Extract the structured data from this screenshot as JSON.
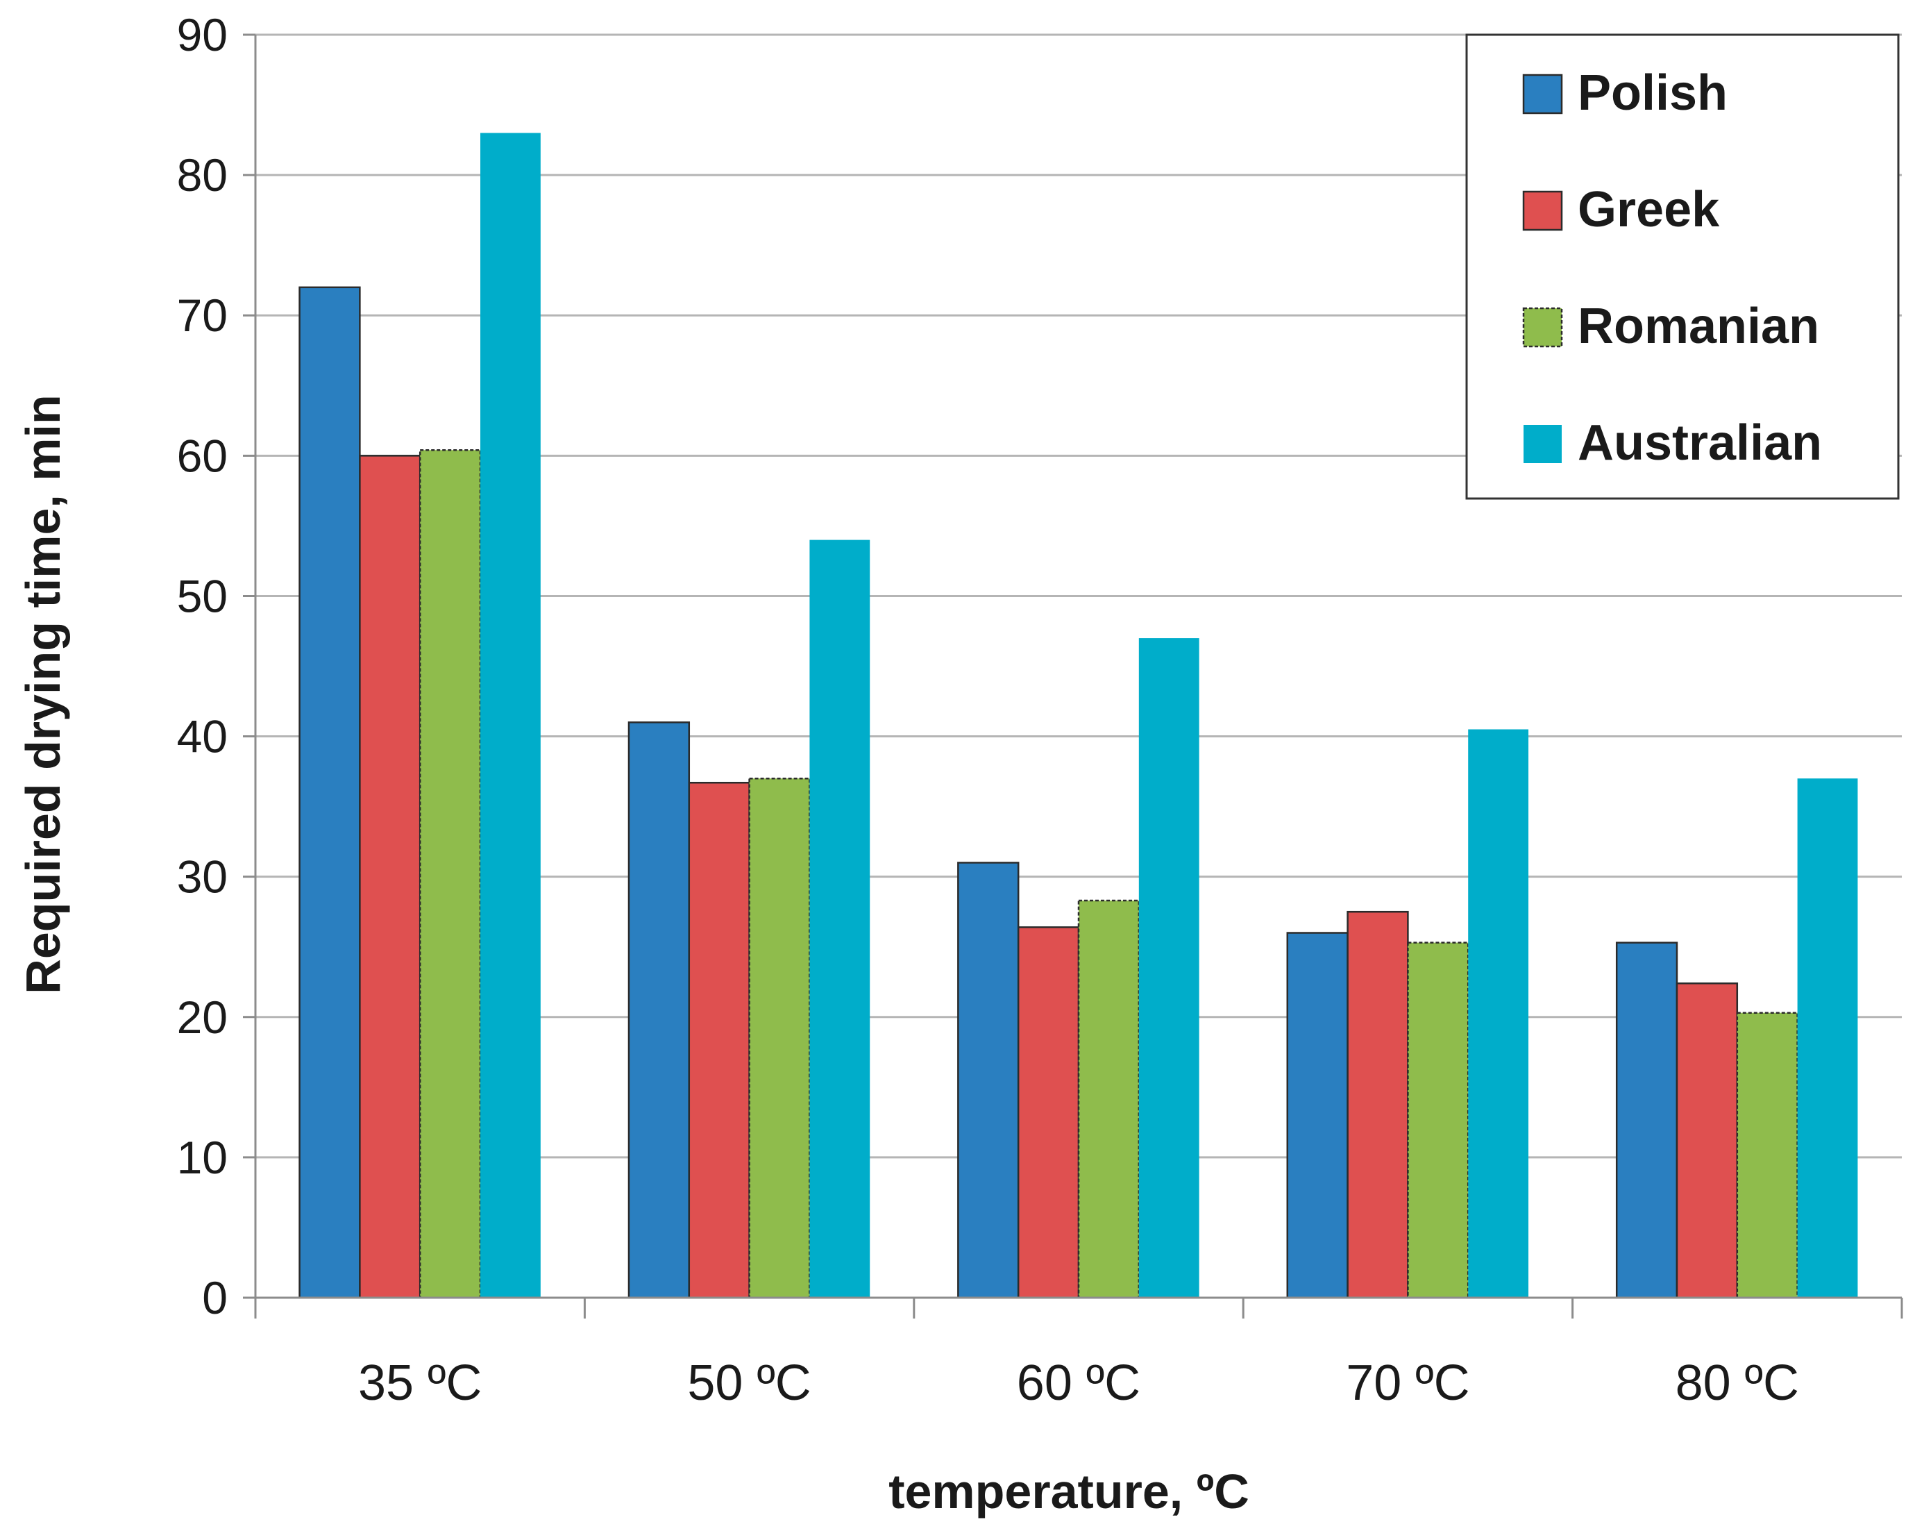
{
  "chart_data": {
    "type": "bar",
    "title": "",
    "xlabel": "temperature, ºC",
    "ylabel": "Required drying time, min",
    "ylim": [
      0,
      90
    ],
    "yticks": [
      0,
      10,
      20,
      30,
      40,
      50,
      60,
      70,
      80,
      90
    ],
    "grid": true,
    "legend_position": "top-right",
    "categories": [
      "35  ºC",
      "50  ºC",
      "60  ºC",
      "70  ºC",
      "80  ºC"
    ],
    "series": [
      {
        "name": "Polish",
        "color": "#2a7fc0",
        "values": [
          72,
          41,
          31,
          26,
          25.3
        ]
      },
      {
        "name": "Greek",
        "color": "#df5050",
        "values": [
          60,
          36.7,
          26.4,
          27.5,
          22.4
        ]
      },
      {
        "name": "Romanian",
        "color": "#8fbc4c",
        "values": [
          60.4,
          37,
          28.3,
          25.3,
          20.3
        ]
      },
      {
        "name": "Australian",
        "color": "#00adca",
        "values": [
          83,
          54,
          47,
          40.5,
          37
        ]
      }
    ]
  }
}
